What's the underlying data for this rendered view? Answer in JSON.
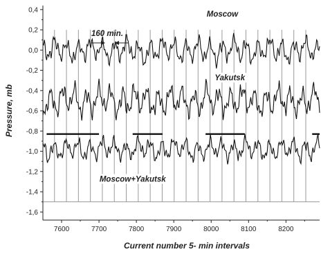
{
  "chart_data": {
    "type": "line",
    "title": "",
    "xlabel": "Current number 5- min intervals",
    "ylabel": "Pressure, mb",
    "xlim": [
      7550,
      8290
    ],
    "ylim": [
      -1.68,
      0.44
    ],
    "x_ticks": [
      7600,
      7700,
      7800,
      7900,
      8000,
      8100,
      8200
    ],
    "x_tick_labels": [
      "7600",
      "7700",
      "7800",
      "7900",
      "8000",
      "8100",
      "8200"
    ],
    "y_ticks": [
      0.4,
      0.2,
      0.0,
      -0.2,
      -0.4,
      -0.6,
      -0.8,
      -1.0,
      -1.2,
      -1.4,
      -1.6
    ],
    "y_tick_labels": [
      "0,4",
      "0,2",
      "0,0",
      "-0,2",
      "-0,4",
      "-0,6",
      "-0,8",
      "-1,0",
      "-1,2",
      "-1,4",
      "-1,6"
    ],
    "grid": false,
    "series": [
      {
        "name": "Moscow",
        "baseline": 0.0,
        "amplitude": 0.09,
        "seed": 3
      },
      {
        "name": "Yakutsk",
        "baseline": -0.5,
        "amplitude": 0.11,
        "seed": 11
      },
      {
        "name": "Moscow+Yakutsk",
        "baseline": -0.98,
        "amplitude": 0.08,
        "seed": 29
      }
    ],
    "x_step": 2,
    "period_markers": {
      "label": "160 min.",
      "start": 7581,
      "spacing": 32,
      "count": 22,
      "ymin": -1.5,
      "ymax": 0.2
    },
    "baseline_line": -1.5,
    "segments": [
      {
        "x1": 7560,
        "x2": 7700,
        "y": -0.83
      },
      {
        "x1": 7790,
        "x2": 7870,
        "y": -0.83
      },
      {
        "x1": 7985,
        "x2": 8090,
        "y": -0.83
      },
      {
        "x1": 8270,
        "x2": 8290,
        "y": -0.83
      }
    ],
    "annotations": [
      {
        "text": "Moscow",
        "x": 8030,
        "y": 0.33
      },
      {
        "text": "Yakutsk",
        "x": 8050,
        "y": -0.3
      },
      {
        "text": "Moscow+Yakutsk",
        "x": 7790,
        "y": -1.3
      }
    ]
  }
}
